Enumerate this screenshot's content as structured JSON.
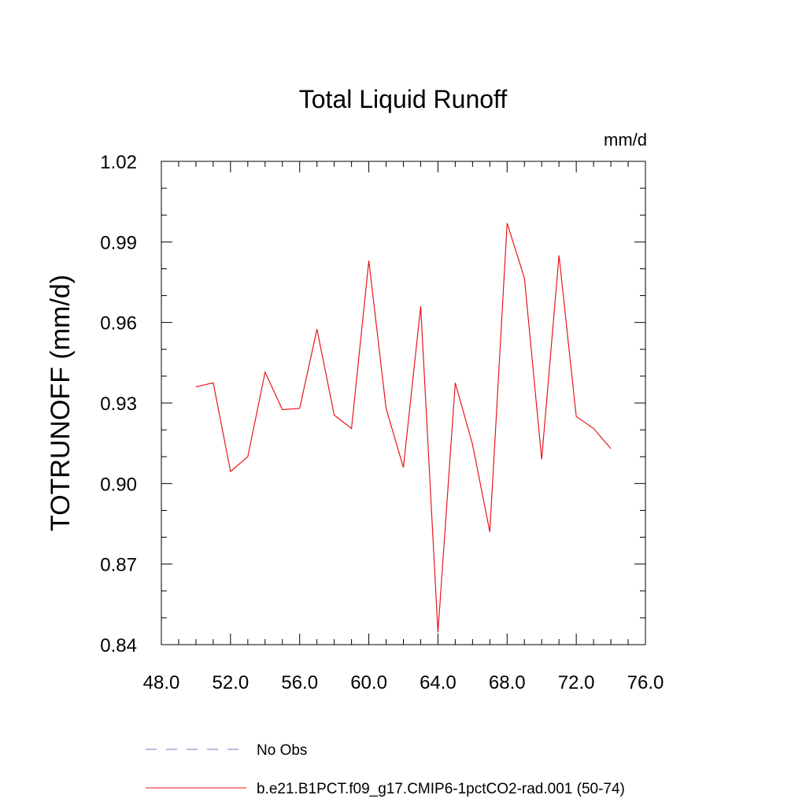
{
  "chart_data": {
    "type": "line",
    "title": "Total Liquid Runoff",
    "units": "mm/d",
    "ylabel": "TOTRUNOFF  (mm/d)",
    "xlabel": "",
    "xlim": [
      48,
      76
    ],
    "ylim": [
      0.84,
      1.02
    ],
    "x_ticks": [
      48,
      52,
      56,
      60,
      64,
      68,
      72,
      76
    ],
    "x_tick_labels": [
      "48.0",
      "52.0",
      "56.0",
      "60.0",
      "64.0",
      "68.0",
      "72.0",
      "76.0"
    ],
    "y_ticks": [
      0.84,
      0.87,
      0.9,
      0.93,
      0.96,
      0.99,
      1.02
    ],
    "y_tick_labels": [
      "0.84",
      "0.87",
      "0.90",
      "0.93",
      "0.96",
      "0.99",
      "1.02"
    ],
    "grid": false,
    "legend_position": "bottom",
    "series": [
      {
        "name": "No Obs",
        "color": "#7b76c6",
        "style": "dashed",
        "x": [],
        "y": []
      },
      {
        "name": "b.e21.B1PCT.f09_g17.CMIP6-1pctCO2-rad.001 (50-74)",
        "color": "#e8151b",
        "style": "solid",
        "x": [
          50,
          51,
          52,
          53,
          54,
          55,
          56,
          57,
          58,
          59,
          60,
          61,
          62,
          63,
          64,
          65,
          66,
          67,
          68,
          69,
          70,
          71,
          72,
          73,
          74
        ],
        "y": [
          0.936,
          0.9375,
          0.9045,
          0.91,
          0.9415,
          0.9275,
          0.928,
          0.9575,
          0.9255,
          0.9205,
          0.983,
          0.928,
          0.906,
          0.966,
          0.8445,
          0.9375,
          0.9145,
          0.882,
          0.997,
          0.9765,
          0.909,
          0.985,
          0.925,
          0.9205,
          0.913
        ]
      }
    ]
  }
}
